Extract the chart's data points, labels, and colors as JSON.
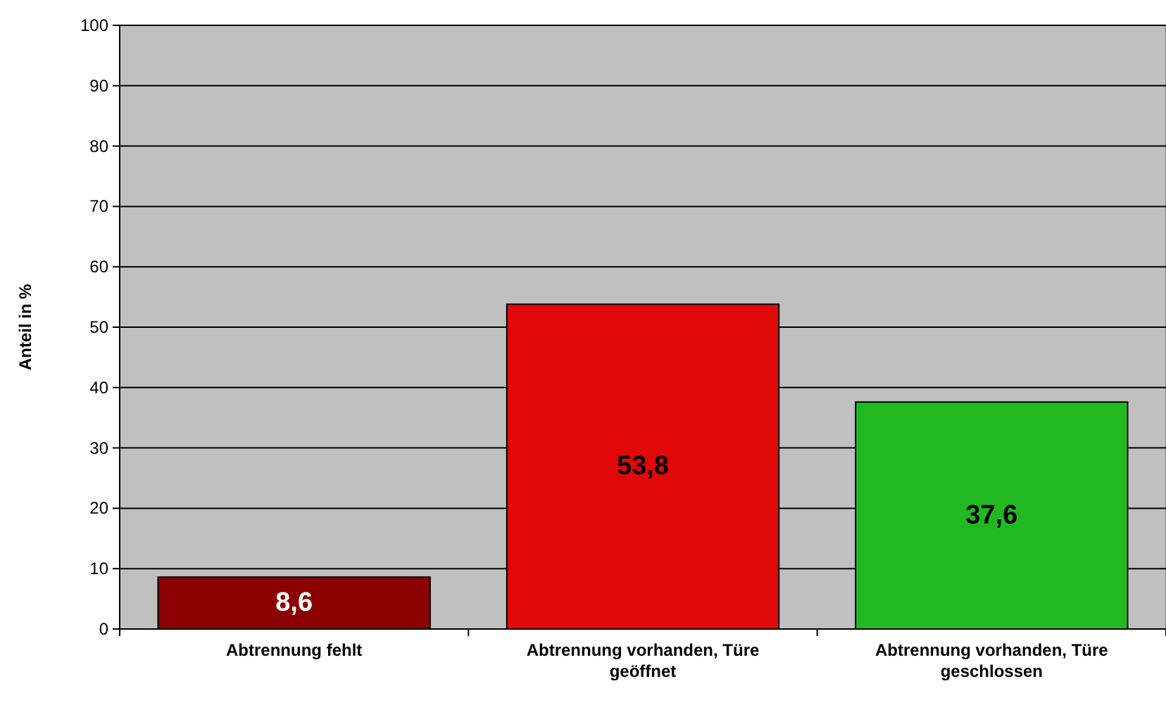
{
  "chart_data": {
    "type": "bar",
    "ylabel": "Anteil in %",
    "categories": [
      "Abtrennung fehlt",
      "Abtrennung vorhanden, Türe geöffnet",
      "Abtrennung vorhanden, Türe geschlossen"
    ],
    "values": [
      8.6,
      53.8,
      37.6
    ],
    "colors": [
      "#8b0000",
      "#e00808",
      "#22b822"
    ],
    "value_labels": [
      "8,6",
      "53,8",
      "37,6"
    ],
    "ylim": [
      0,
      100
    ],
    "yticks": [
      0,
      10,
      20,
      30,
      40,
      50,
      60,
      70,
      80,
      90,
      100
    ],
    "grid": "y"
  }
}
